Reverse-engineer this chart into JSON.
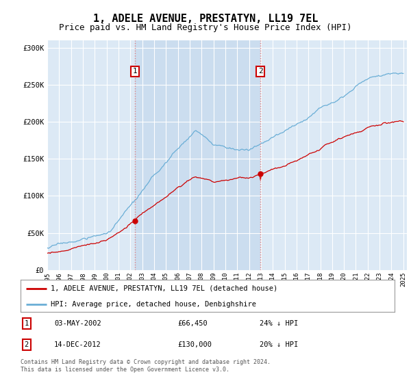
{
  "title": "1, ADELE AVENUE, PRESTATYN, LL19 7EL",
  "subtitle": "Price paid vs. HM Land Registry's House Price Index (HPI)",
  "title_fontsize": 11,
  "subtitle_fontsize": 9,
  "bg_color": "#ffffff",
  "plot_bg_color": "#dce9f5",
  "shade_color": "#c5d9ed",
  "grid_color": "#ffffff",
  "hpi_color": "#6aaed6",
  "price_color": "#cc0000",
  "vline_color": "#e08080",
  "vline_style": ":",
  "ylim": [
    0,
    310000
  ],
  "yticks": [
    0,
    50000,
    100000,
    150000,
    200000,
    250000,
    300000
  ],
  "ytick_labels": [
    "£0",
    "£50K",
    "£100K",
    "£150K",
    "£200K",
    "£250K",
    "£300K"
  ],
  "legend_red_label": "1, ADELE AVENUE, PRESTATYN, LL19 7EL (detached house)",
  "legend_blue_label": "HPI: Average price, detached house, Denbighshire",
  "table_row1": [
    "1",
    "03-MAY-2002",
    "£66,450",
    "24% ↓ HPI"
  ],
  "table_row2": [
    "2",
    "14-DEC-2012",
    "£130,000",
    "20% ↓ HPI"
  ],
  "footer": "Contains HM Land Registry data © Crown copyright and database right 2024.\nThis data is licensed under the Open Government Licence v3.0.",
  "purchase1_year": 2002.37,
  "purchase1_price": 66450,
  "purchase2_year": 2012.96,
  "purchase2_price": 130000
}
